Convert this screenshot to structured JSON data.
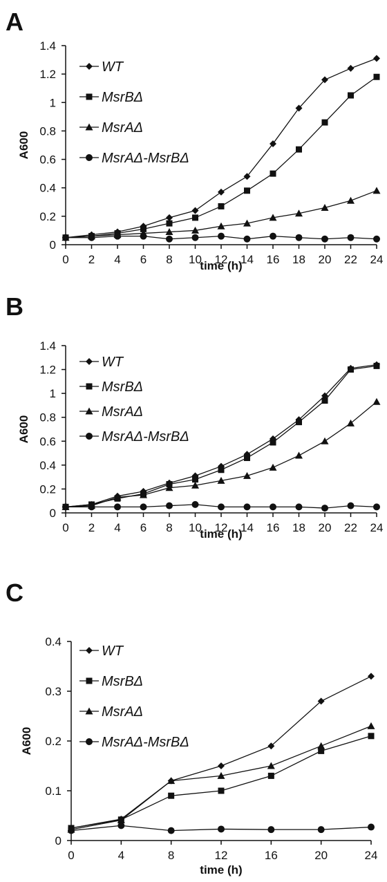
{
  "chart_data": [
    {
      "type": "line",
      "panel_label": "A",
      "xlabel": "time (h)",
      "ylabel": "A600",
      "x": [
        0,
        2,
        4,
        6,
        8,
        10,
        12,
        14,
        16,
        18,
        20,
        22,
        24
      ],
      "x_ticks": [
        "0",
        "2",
        "4",
        "6",
        "8",
        "10",
        "12",
        "14",
        "16",
        "18",
        "20",
        "22",
        "24"
      ],
      "ylim": [
        0,
        1.4
      ],
      "y_ticks": [
        "0",
        "0.2",
        "0.4",
        "0.6",
        "0.8",
        "1",
        "1.2",
        "1.4"
      ],
      "grid": false,
      "legend_placement": "top-left",
      "series": [
        {
          "name": "WT",
          "marker": "diamond",
          "values": [
            0.05,
            0.07,
            0.09,
            0.13,
            0.19,
            0.24,
            0.37,
            0.48,
            0.71,
            0.96,
            1.16,
            1.24,
            1.31
          ]
        },
        {
          "name": "MsrBΔ",
          "marker": "square",
          "values": [
            0.05,
            0.06,
            0.08,
            0.11,
            0.15,
            0.19,
            0.27,
            0.38,
            0.5,
            0.67,
            0.86,
            1.05,
            1.18
          ]
        },
        {
          "name": "MsrAΔ",
          "marker": "triangle",
          "values": [
            0.05,
            0.06,
            0.07,
            0.08,
            0.09,
            0.1,
            0.13,
            0.15,
            0.19,
            0.22,
            0.26,
            0.31,
            0.38
          ]
        },
        {
          "name": "MsrAΔ-MsrBΔ",
          "marker": "circle",
          "values": [
            0.05,
            0.05,
            0.06,
            0.06,
            0.04,
            0.05,
            0.06,
            0.04,
            0.06,
            0.05,
            0.04,
            0.05,
            0.04
          ]
        }
      ]
    },
    {
      "type": "line",
      "panel_label": "B",
      "xlabel": "time (h)",
      "ylabel": "A600",
      "x": [
        0,
        2,
        4,
        6,
        8,
        10,
        12,
        14,
        16,
        18,
        20,
        22,
        24
      ],
      "x_ticks": [
        "0",
        "2",
        "4",
        "6",
        "8",
        "10",
        "12",
        "14",
        "16",
        "18",
        "20",
        "22",
        "24"
      ],
      "ylim": [
        0,
        1.4
      ],
      "y_ticks": [
        "0",
        "0.2",
        "0.4",
        "0.6",
        "0.8",
        "1",
        "1.2",
        "1.4"
      ],
      "grid": false,
      "legend_placement": "top-left",
      "series": [
        {
          "name": "WT",
          "marker": "diamond",
          "values": [
            0.05,
            0.07,
            0.14,
            0.18,
            0.25,
            0.31,
            0.39,
            0.49,
            0.62,
            0.78,
            0.98,
            1.21,
            1.24
          ]
        },
        {
          "name": "MsrBΔ",
          "marker": "square",
          "values": [
            0.05,
            0.07,
            0.12,
            0.16,
            0.24,
            0.28,
            0.36,
            0.46,
            0.59,
            0.76,
            0.94,
            1.2,
            1.23
          ]
        },
        {
          "name": "MsrAΔ",
          "marker": "triangle",
          "values": [
            0.05,
            0.06,
            0.13,
            0.15,
            0.21,
            0.23,
            0.27,
            0.31,
            0.38,
            0.48,
            0.6,
            0.75,
            0.93
          ]
        },
        {
          "name": "MsrAΔ-MsrBΔ",
          "marker": "circle",
          "values": [
            0.05,
            0.05,
            0.05,
            0.05,
            0.06,
            0.07,
            0.05,
            0.05,
            0.05,
            0.05,
            0.04,
            0.06,
            0.05
          ]
        }
      ]
    },
    {
      "type": "line",
      "panel_label": "C",
      "xlabel": "time (h)",
      "ylabel": "A600",
      "x": [
        0,
        4,
        8,
        12,
        16,
        20,
        24
      ],
      "x_ticks": [
        "0",
        "4",
        "8",
        "12",
        "16",
        "20",
        "24"
      ],
      "ylim": [
        0,
        0.4
      ],
      "y_ticks": [
        "0",
        "0.1",
        "0.2",
        "0.3",
        "0.4"
      ],
      "grid": false,
      "legend_placement": "top-left",
      "series": [
        {
          "name": "WT",
          "marker": "diamond",
          "values": [
            0.025,
            0.043,
            0.12,
            0.15,
            0.19,
            0.28,
            0.33
          ]
        },
        {
          "name": "MsrBΔ",
          "marker": "square",
          "values": [
            0.025,
            0.042,
            0.09,
            0.1,
            0.13,
            0.18,
            0.21
          ]
        },
        {
          "name": "MsrAΔ",
          "marker": "triangle",
          "values": [
            0.022,
            0.041,
            0.12,
            0.13,
            0.15,
            0.19,
            0.23
          ]
        },
        {
          "name": "MsrAΔ-MsrBΔ",
          "marker": "circle",
          "values": [
            0.02,
            0.03,
            0.02,
            0.023,
            0.022,
            0.022,
            0.027
          ]
        }
      ]
    }
  ]
}
